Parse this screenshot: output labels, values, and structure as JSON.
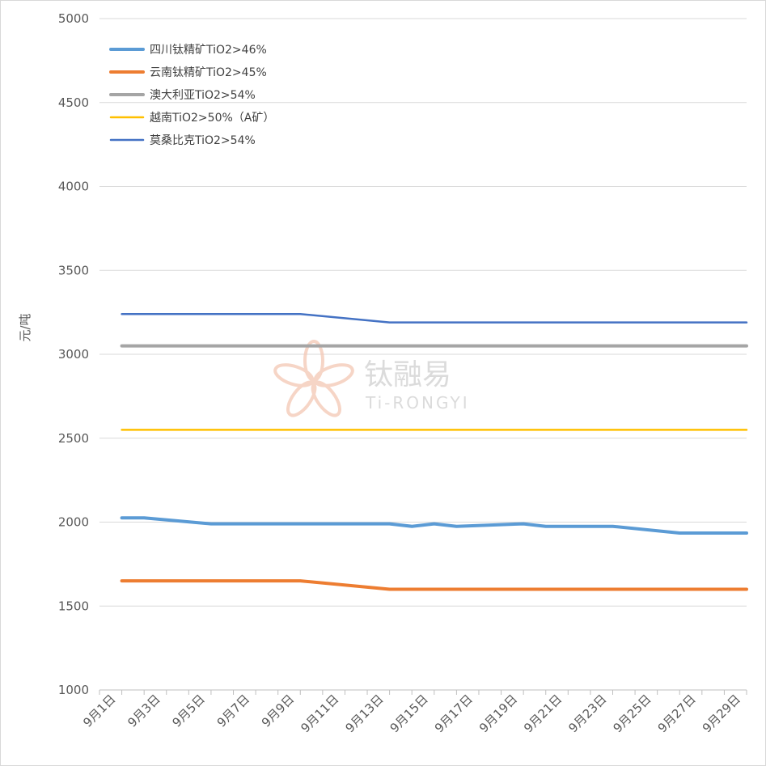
{
  "chart_data": {
    "type": "line",
    "ylabel": "元/吨",
    "ylim": [
      1000,
      5000
    ],
    "yticks": [
      1000,
      1500,
      2000,
      2500,
      3000,
      3500,
      4000,
      4500,
      5000
    ],
    "x_range": [
      1,
      29.5
    ],
    "xtick_labels": [
      "9月1日",
      "9月3日",
      "9月5日",
      "9月7日",
      "9月9日",
      "9月11日",
      "9月13日",
      "9月15日",
      "9月17日",
      "9月19日",
      "9月21日",
      "9月23日",
      "9月25日",
      "9月27日",
      "9月29日"
    ],
    "xtick_positions": [
      1,
      3,
      5,
      7,
      9,
      11,
      13,
      15,
      17,
      19,
      21,
      23,
      25,
      27,
      29
    ],
    "grid": true,
    "legend_position": "top-left",
    "series": [
      {
        "name": "四川钛精矿TiO2>46%",
        "color": "#5b9bd5",
        "stroke_width": 4,
        "x": [
          1.5,
          2.5,
          5.5,
          9.5,
          13.5,
          14.5,
          15.5,
          16.5,
          19.5,
          20.5,
          23.5,
          26.5,
          29.5
        ],
        "y": [
          2025,
          2025,
          1990,
          1990,
          1990,
          1975,
          1990,
          1975,
          1990,
          1975,
          1975,
          1935,
          1935
        ]
      },
      {
        "name": "云南钛精矿TiO2>45%",
        "color": "#ed7d31",
        "stroke_width": 4,
        "x": [
          1.5,
          9.5,
          13.5,
          29.5
        ],
        "y": [
          1650,
          1650,
          1600,
          1600
        ]
      },
      {
        "name": "澳大利亚TiO2>54%",
        "color": "#a5a5a5",
        "stroke_width": 4,
        "x": [
          1.5,
          29.5
        ],
        "y": [
          3050,
          3050
        ]
      },
      {
        "name": "越南TiO2>50%（A矿）",
        "color": "#ffc000",
        "stroke_width": 2.5,
        "x": [
          1.5,
          29.5
        ],
        "y": [
          2550,
          2550
        ]
      },
      {
        "name": "莫桑比克TiO2>54%",
        "color": "#4472c4",
        "stroke_width": 2.5,
        "x": [
          1.5,
          9.5,
          13.5,
          29.5
        ],
        "y": [
          3240,
          3240,
          3190,
          3190
        ]
      }
    ]
  },
  "watermark": {
    "title": "钛融易",
    "subtitle": "Ti-RONGYI"
  },
  "colors": {
    "grid": "#d9d9d9",
    "axis": "#bfbfbf",
    "tick_text": "#595959"
  }
}
